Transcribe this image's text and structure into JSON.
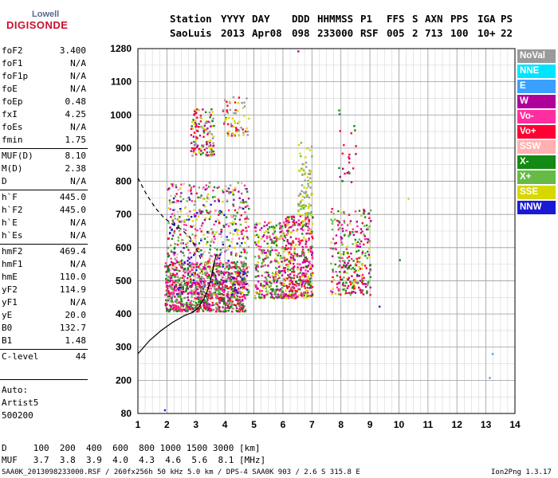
{
  "logo": {
    "line1": "Lowell",
    "line2": "DIGISONDE"
  },
  "header": {
    "row1": [
      "Station",
      "YYYY",
      "DAY",
      "DDD",
      "HHMMSS",
      "P1",
      "FFS",
      "S",
      "AXN",
      "PPS",
      "IGA",
      "PS"
    ],
    "row2": [
      "SaoLuis",
      "2013",
      "Apr08",
      "098",
      "233000",
      "RSF",
      "005",
      "2",
      "713",
      "100",
      "10+",
      "22"
    ]
  },
  "params": [
    {
      "name": "foF2",
      "value": "3.400"
    },
    {
      "name": "foF1",
      "value": "N/A"
    },
    {
      "name": "foF1p",
      "value": "N/A"
    },
    {
      "name": "foE",
      "value": "N/A"
    },
    {
      "name": "foEp",
      "value": "0.48"
    },
    {
      "name": "fxI",
      "value": "4.25"
    },
    {
      "name": "foEs",
      "value": "N/A"
    },
    {
      "name": "fmin",
      "value": "1.75"
    },
    {
      "name": "MUF(D)",
      "value": "8.10"
    },
    {
      "name": "M(D)",
      "value": "2.38"
    },
    {
      "name": "D",
      "value": "N/A"
    },
    {
      "name": "h`F",
      "value": "445.0"
    },
    {
      "name": "h`F2",
      "value": "445.0"
    },
    {
      "name": "h`E",
      "value": "N/A"
    },
    {
      "name": "h`Es",
      "value": "N/A"
    },
    {
      "name": "hmF2",
      "value": "469.4"
    },
    {
      "name": "hmF1",
      "value": "N/A"
    },
    {
      "name": "hmE",
      "value": "110.0"
    },
    {
      "name": "yF2",
      "value": "114.9"
    },
    {
      "name": "yF1",
      "value": "N/A"
    },
    {
      "name": "yE",
      "value": "20.0"
    },
    {
      "name": "B0",
      "value": "132.7"
    },
    {
      "name": "B1",
      "value": "1.48"
    },
    {
      "name": "C-level",
      "value": "44"
    }
  ],
  "auto": {
    "line1": "Auto:",
    "line2": "Artist5",
    "line3": "500200"
  },
  "legend": [
    {
      "label": "NoVal",
      "color": "#9a9a9a"
    },
    {
      "label": "NNE",
      "color": "#00e5ff"
    },
    {
      "label": "E",
      "color": "#3aa0ff"
    },
    {
      "label": "W",
      "color": "#b0009c"
    },
    {
      "label": "Vo-",
      "color": "#ff2ea0"
    },
    {
      "label": "Vo+",
      "color": "#ff0033"
    },
    {
      "label": "SSW",
      "color": "#ffb0b0"
    },
    {
      "label": "X-",
      "color": "#138a13"
    },
    {
      "label": "X+",
      "color": "#66bb44"
    },
    {
      "label": "SSE",
      "color": "#d7d700"
    },
    {
      "label": "NNW",
      "color": "#1a1ad6"
    }
  ],
  "bottom": {
    "d_row": "D     100  200  400  600  800 1000 1500 3000 [km]",
    "muf_row": "MUF   3.7  3.8  3.9  4.0  4.3  4.6  5.6  8.1 [MHz]"
  },
  "footer": {
    "left": "SAA0K_2013098233000.RSF / 260fx256h 50 kHz 5.0 km / DPS-4 SAA0K 903 / 2.6 S 315.8 E",
    "right": "Ion2Png 1.3.17"
  },
  "chart_data": {
    "type": "scatter",
    "x_ticks": [
      1,
      2,
      3,
      4,
      5,
      6,
      7,
      8,
      9,
      10,
      11,
      12,
      13,
      14
    ],
    "y_ticks": [
      80,
      200,
      300,
      400,
      500,
      600,
      700,
      800,
      900,
      1000,
      1100,
      1280
    ],
    "xlim": [
      1,
      14
    ],
    "ylim": [
      80,
      1280
    ],
    "grid": true,
    "clusters": [
      {
        "x": [
          1.9,
          4.7
        ],
        "y": [
          410,
          560
        ],
        "n": 900,
        "colors": [
          "#b0009c",
          "#ff2ea0",
          "#ff0033",
          "#138a13",
          "#66bb44"
        ]
      },
      {
        "x": [
          2.0,
          4.8
        ],
        "y": [
          460,
          800
        ],
        "n": 700,
        "colors": [
          "#d7d700",
          "#66bb44",
          "#138a13",
          "#ff0033",
          "#ff2ea0",
          "#b0009c",
          "#9a9a9a",
          "#ffb0b0",
          "#1a1ad6"
        ]
      },
      {
        "x": [
          2.8,
          3.6
        ],
        "y": [
          880,
          1020
        ],
        "n": 140,
        "colors": [
          "#ff0033",
          "#b0009c",
          "#d7d700",
          "#9a9a9a",
          "#138a13"
        ]
      },
      {
        "x": [
          3.9,
          4.8
        ],
        "y": [
          940,
          1060
        ],
        "n": 70,
        "colors": [
          "#d7d700",
          "#ff0033",
          "#9a9a9a"
        ]
      },
      {
        "x": [
          5.0,
          6.0
        ],
        "y": [
          450,
          680
        ],
        "n": 320,
        "colors": [
          "#d7d700",
          "#138a13",
          "#b0009c",
          "#ff2ea0",
          "#66bb44"
        ]
      },
      {
        "x": [
          6.0,
          7.0
        ],
        "y": [
          450,
          700
        ],
        "n": 420,
        "colors": [
          "#b0009c",
          "#ff2ea0",
          "#ff0033",
          "#138a13",
          "#d7d700"
        ]
      },
      {
        "x": [
          6.5,
          7.0
        ],
        "y": [
          700,
          920
        ],
        "n": 90,
        "colors": [
          "#d7d700",
          "#66bb44",
          "#9a9a9a"
        ]
      },
      {
        "x": [
          7.6,
          9.0
        ],
        "y": [
          460,
          720
        ],
        "n": 300,
        "colors": [
          "#d7d700",
          "#138a13",
          "#ff2ea0",
          "#b0009c",
          "#ff0033",
          "#66bb44"
        ]
      },
      {
        "x": [
          7.9,
          8.5
        ],
        "y": [
          800,
          1020
        ],
        "n": 25,
        "colors": [
          "#ff0033",
          "#b0009c",
          "#138a13"
        ]
      }
    ],
    "isolated_points": [
      {
        "x": 6.5,
        "y": 1270,
        "color": "#b0009c"
      },
      {
        "x": 9.3,
        "y": 425,
        "color": "#1a1ad6"
      },
      {
        "x": 10.0,
        "y": 565,
        "color": "#138a13"
      },
      {
        "x": 13.2,
        "y": 282,
        "color": "#3aa0ff"
      },
      {
        "x": 13.1,
        "y": 210,
        "color": "#3aa0ff"
      },
      {
        "x": 1.9,
        "y": 95,
        "color": "#1a1ad6"
      },
      {
        "x": 10.3,
        "y": 750,
        "color": "#d7d700"
      }
    ],
    "profile_solid": {
      "x": [
        1.0,
        1.4,
        1.8,
        2.2,
        2.6,
        2.9,
        3.1,
        3.3,
        3.4,
        3.5,
        3.6,
        3.7
      ],
      "y": [
        280,
        320,
        350,
        375,
        395,
        405,
        420,
        450,
        470,
        500,
        540,
        580
      ]
    },
    "profile_dashed": {
      "x": [
        1.0,
        1.3,
        1.6,
        1.9,
        2.2,
        2.5,
        2.8,
        3.0,
        3.2
      ],
      "y": [
        810,
        760,
        720,
        690,
        670,
        655,
        630,
        600,
        560
      ]
    }
  }
}
